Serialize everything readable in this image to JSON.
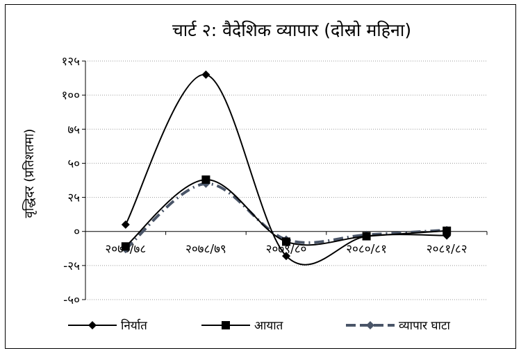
{
  "chart_data": {
    "type": "line",
    "title": "चार्ट २: वैदेशिक व्यापार (दोस्रो महिना)",
    "ylabel": "वृद्धिदर  (प्रतिशतमा)",
    "xlabel": "",
    "categories": [
      "२०७७/७८",
      "२०७८/७९",
      "२०७९/८०",
      "२०८०/८१",
      "२०८१/८२"
    ],
    "ylim": [
      -50,
      125
    ],
    "yticks": [
      {
        "value": 125,
        "label": "१२५"
      },
      {
        "value": 100,
        "label": "१००"
      },
      {
        "value": 75,
        "label": "७५"
      },
      {
        "value": 50,
        "label": "५०"
      },
      {
        "value": 25,
        "label": "२५"
      },
      {
        "value": 0,
        "label": "०"
      },
      {
        "value": -25,
        "label": "-२५"
      },
      {
        "value": -50,
        "label": "-५०"
      }
    ],
    "grid": "horizontal-dotted",
    "legend_position": "bottom",
    "series": [
      {
        "name": "निर्यात",
        "values": [
          5,
          115,
          -18,
          -3.5,
          -3
        ],
        "color": "#000000",
        "marker": "diamond",
        "dash": "solid"
      },
      {
        "name": "आयात",
        "values": [
          -11,
          38,
          -7.5,
          -3.5,
          0.5
        ],
        "color": "#000000",
        "marker": "square",
        "dash": "solid"
      },
      {
        "name": "व्यापार घाटा",
        "values": [
          -13,
          35,
          -6,
          -2.5,
          1
        ],
        "color": "#4a5568",
        "marker": "diamond",
        "dash": "dash"
      }
    ]
  }
}
